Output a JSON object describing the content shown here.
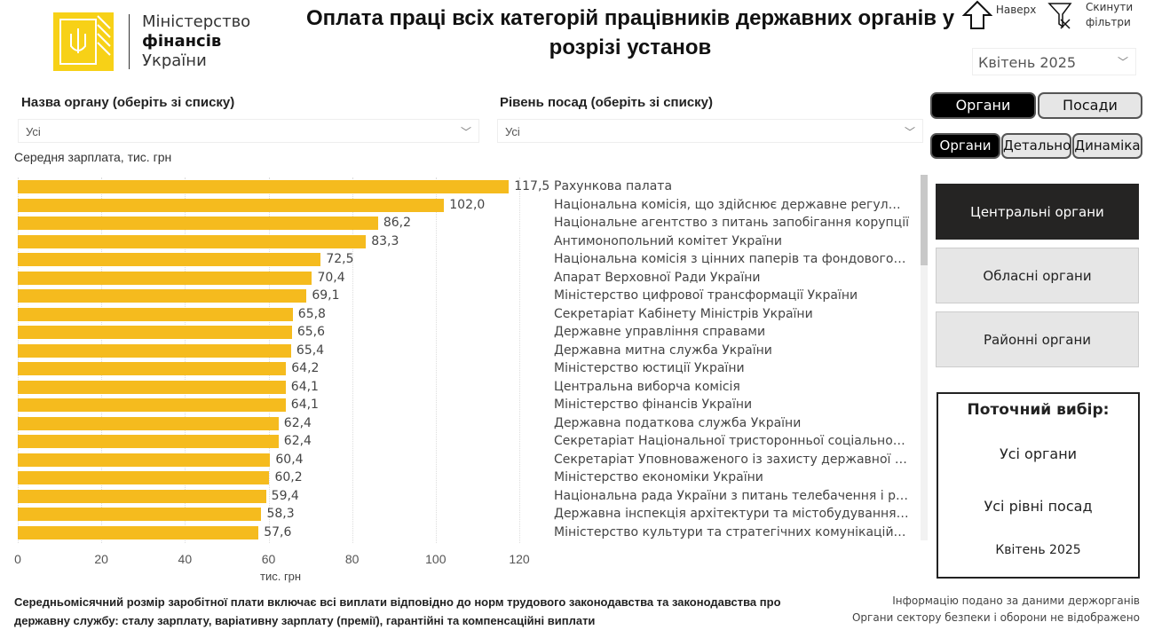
{
  "header": {
    "logo": {
      "line1": "Міністерство",
      "line2": "фінансів",
      "line3": "України"
    },
    "title": "Оплата праці всіх категорій працівників державних органів у розрізі установ",
    "up_label": "Наверх",
    "reset_label_1": "Скинути",
    "reset_label_2": "фільтри",
    "period": "Квітень 2025"
  },
  "filters": {
    "org": {
      "label": "Назва органу (оберіть зі списку)",
      "value": "Усі"
    },
    "level": {
      "label": "Рівень посад (оберіть зі списку)",
      "value": "Усі"
    }
  },
  "toggles": {
    "top": [
      {
        "label": "Органи",
        "active": true
      },
      {
        "label": "Посади",
        "active": false
      }
    ],
    "sub": [
      {
        "label": "Органи",
        "active": true
      },
      {
        "label": "Детально",
        "active": false
      },
      {
        "label": "Динаміка",
        "active": false
      }
    ]
  },
  "tiles": [
    {
      "label": "Центральні органи",
      "active": true
    },
    {
      "label": "Обласні органи",
      "active": false
    },
    {
      "label": "Районні органи",
      "active": false
    }
  ],
  "selection": {
    "title": "Поточний вибір:",
    "org": "Усі органи",
    "level": "Усі рівні посад",
    "period": "Квітень 2025"
  },
  "chart_data": {
    "type": "bar",
    "orientation": "horizontal",
    "title": "Середня зарплата, тис. грн",
    "xlabel": "тис. грн",
    "xlim": [
      0,
      120
    ],
    "xticks": [
      "0",
      "20",
      "40",
      "60",
      "80",
      "100",
      "120"
    ],
    "bar_color": "#f5bb1e",
    "categories": [
      "Рахункова палата",
      "Національна комісія, що здійснює державне регулюванн...",
      "Національне агентство з питань запобігання корупції",
      "Антимонопольний комітет України",
      "Національна комісія з цінних паперів та фондового ринку",
      "Апарат Верховної Ради України",
      "Міністерство цифрової трансформації України",
      "Секретаріат Кабінету Міністрів України",
      "Державне управління справами",
      "Державна митна служба України",
      "Міністерство юстиції України",
      "Центральна виборча комісія",
      "Міністерство фінансів України",
      "Державна податкова служба України",
      "Секретаріат Національної тристоронньої соціально-екон...",
      "Секретаріат Уповноваженого із захисту державної мови",
      "Міністерство економіки України",
      "Національна рада України з питань телебачення і радіом...",
      "Державна інспекція архітектури та містобудування України",
      "Міністерство культури та стратегічних комунікацій України"
    ],
    "values": [
      117.5,
      102.0,
      86.2,
      83.3,
      72.5,
      70.4,
      69.1,
      65.8,
      65.6,
      65.4,
      64.2,
      64.1,
      64.1,
      62.4,
      62.4,
      60.4,
      60.2,
      59.4,
      58.3,
      57.6
    ],
    "value_labels": [
      "117,5",
      "102,0",
      "86,2",
      "83,3",
      "72,5",
      "70,4",
      "69,1",
      "65,8",
      "65,6",
      "65,4",
      "64,2",
      "64,1",
      "64,1",
      "62,4",
      "62,4",
      "60,4",
      "60,2",
      "59,4",
      "58,3",
      "57,6"
    ]
  },
  "footer": {
    "note": "Середньомісячний розмір заробітної плати включає всі виплати відповідно до норм трудового законодавства та законодавства про державну службу: сталу зарплату, варіативну зарплату (премії), гарантійні та компенсаційні виплати",
    "source": "Інформацію подано за даними держорганів",
    "disclaimer": "Органи сектору безпеки і оборони не відображено"
  }
}
